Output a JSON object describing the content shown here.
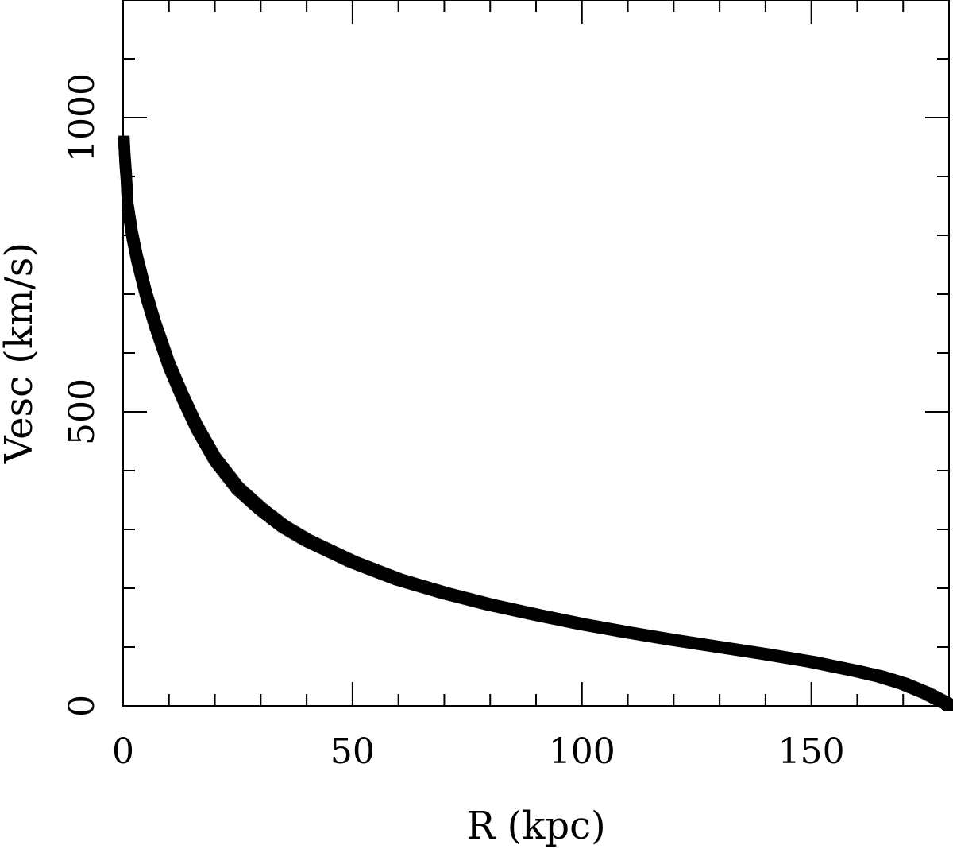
{
  "chart_data": {
    "type": "scatter",
    "title": "",
    "xlabel": "R (kpc)",
    "ylabel": "Vesc (km/s)",
    "xlim": [
      0,
      180
    ],
    "ylim": [
      0,
      1200
    ],
    "x_ticks": [
      0,
      50,
      100,
      150
    ],
    "x_tick_labels": [
      "0",
      "50",
      "100",
      "150"
    ],
    "y_ticks": [
      0,
      500,
      1000
    ],
    "y_tick_labels": [
      "0",
      "500",
      "1000"
    ],
    "x_minor_step": 10,
    "y_minor_step": 100,
    "grid": false,
    "marker": "square",
    "color": "#000000",
    "series": [
      {
        "x": [
          0.2,
          0.4,
          0.7,
          1,
          2,
          3,
          5,
          7,
          10,
          13,
          16,
          20,
          25,
          30,
          35,
          40,
          50,
          60,
          70,
          80,
          90,
          100,
          110,
          120,
          130,
          140,
          150,
          160,
          165,
          170,
          175,
          178,
          179.5,
          180
        ],
        "y": [
          960,
          930,
          900,
          850,
          800,
          762,
          700,
          648,
          580,
          525,
          475,
          420,
          370,
          335,
          305,
          282,
          245,
          215,
          192,
          172,
          155,
          139,
          125,
          112,
          100,
          88,
          75,
          59,
          50,
          38,
          22,
          10,
          4,
          0
        ]
      }
    ]
  }
}
